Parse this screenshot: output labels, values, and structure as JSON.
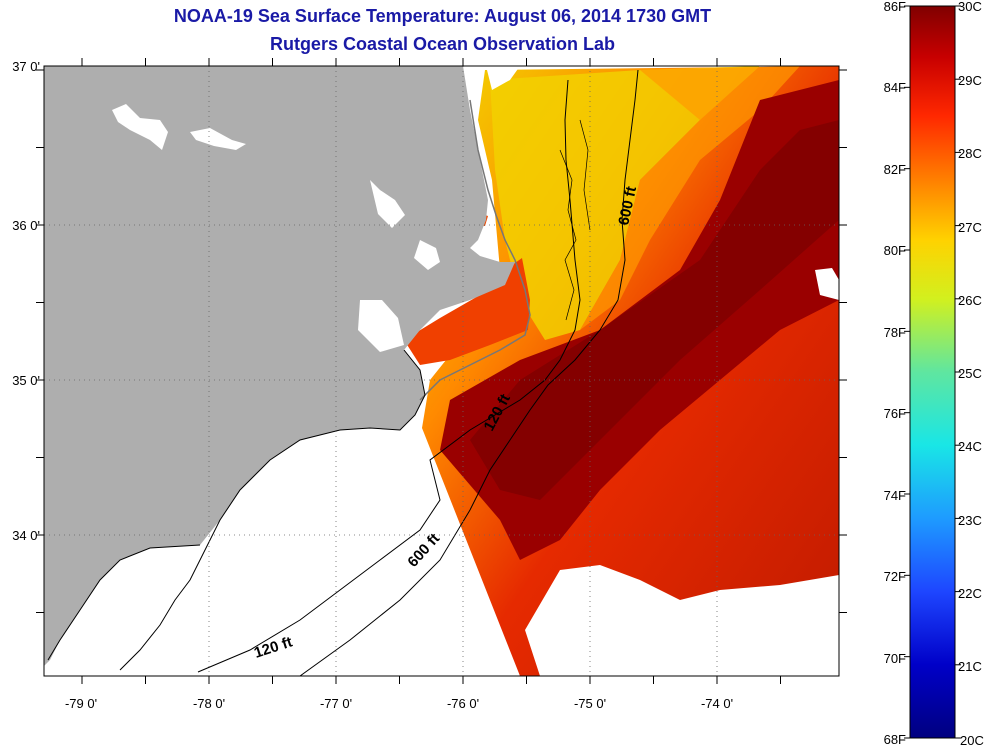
{
  "title": {
    "line1": "NOAA-19 Sea Surface Temperature:  August 06, 2014 1730 GMT",
    "line2": "Rutgers Coastal Ocean Observation Lab"
  },
  "map": {
    "lat_labels": [
      "37 0'",
      "36 0'",
      "35 0'",
      "34 0'"
    ],
    "lon_labels": [
      "-79 0'",
      "-78 0'",
      "-77 0'",
      "-76 0'",
      "-75 0'",
      "-74 0'"
    ],
    "contour_labels": [
      "600 ft",
      "120 ft",
      "600 ft",
      "120 ft"
    ],
    "colors": {
      "land": "#aeaeae",
      "cloud": "#ffffff"
    }
  },
  "colorbar": {
    "fahrenheit_labels": [
      "86F",
      "84F",
      "82F",
      "80F",
      "78F",
      "76F",
      "74F",
      "72F",
      "70F",
      "68F"
    ],
    "celsius_labels": [
      "30C",
      "29C",
      "28C",
      "27C",
      "26C",
      "25C",
      "24C",
      "23C",
      "22C",
      "21C",
      "20C"
    ]
  }
}
